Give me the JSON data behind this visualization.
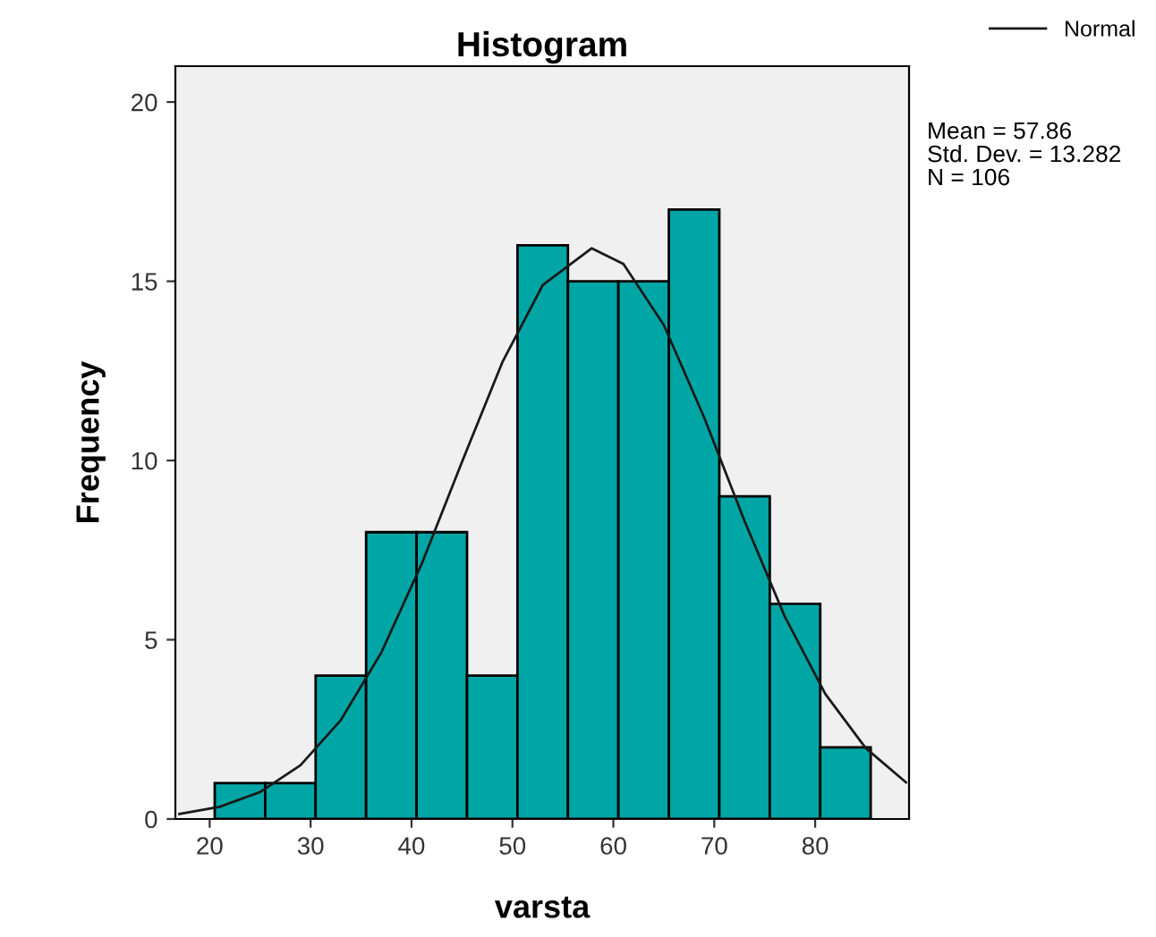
{
  "chart_data": {
    "type": "histogram",
    "title": "Histogram",
    "xlabel": "varsta",
    "ylabel": "Frequency",
    "bins": [
      20.5,
      25.5,
      30.5,
      35.5,
      40.5,
      45.5,
      50.5,
      55.5,
      60.5,
      65.5,
      70.5,
      75.5,
      80.5,
      85.5
    ],
    "values": [
      1,
      1,
      4,
      8,
      8,
      4,
      16,
      15,
      15,
      17,
      9,
      6,
      2
    ],
    "color": "#00a6a6",
    "series": [
      {
        "type": "line",
        "name": "Normal",
        "color": "#1a1a1a",
        "x": [
          17,
          21,
          25,
          29,
          33,
          37,
          41,
          45,
          49,
          53,
          57.86,
          61,
          65,
          69,
          73,
          77,
          81,
          85,
          89
        ],
        "values": [
          0.14,
          0.34,
          0.75,
          1.5,
          2.76,
          4.64,
          7.11,
          9.96,
          12.74,
          14.89,
          15.92,
          15.48,
          13.78,
          11.2,
          8.31,
          5.64,
          3.49,
          1.98,
          1.02
        ]
      }
    ],
    "xlim": [
      16.6,
      89.3
    ],
    "ylim": [
      0,
      21
    ],
    "xticks": [
      20,
      30,
      40,
      50,
      60,
      70,
      80
    ],
    "yticks": [
      0,
      5,
      10,
      15,
      20
    ],
    "annotations": [
      "Mean = 57.86",
      "Std. Dev. = 13.282",
      "N = 106"
    ],
    "legend": "top right",
    "grid": false
  }
}
